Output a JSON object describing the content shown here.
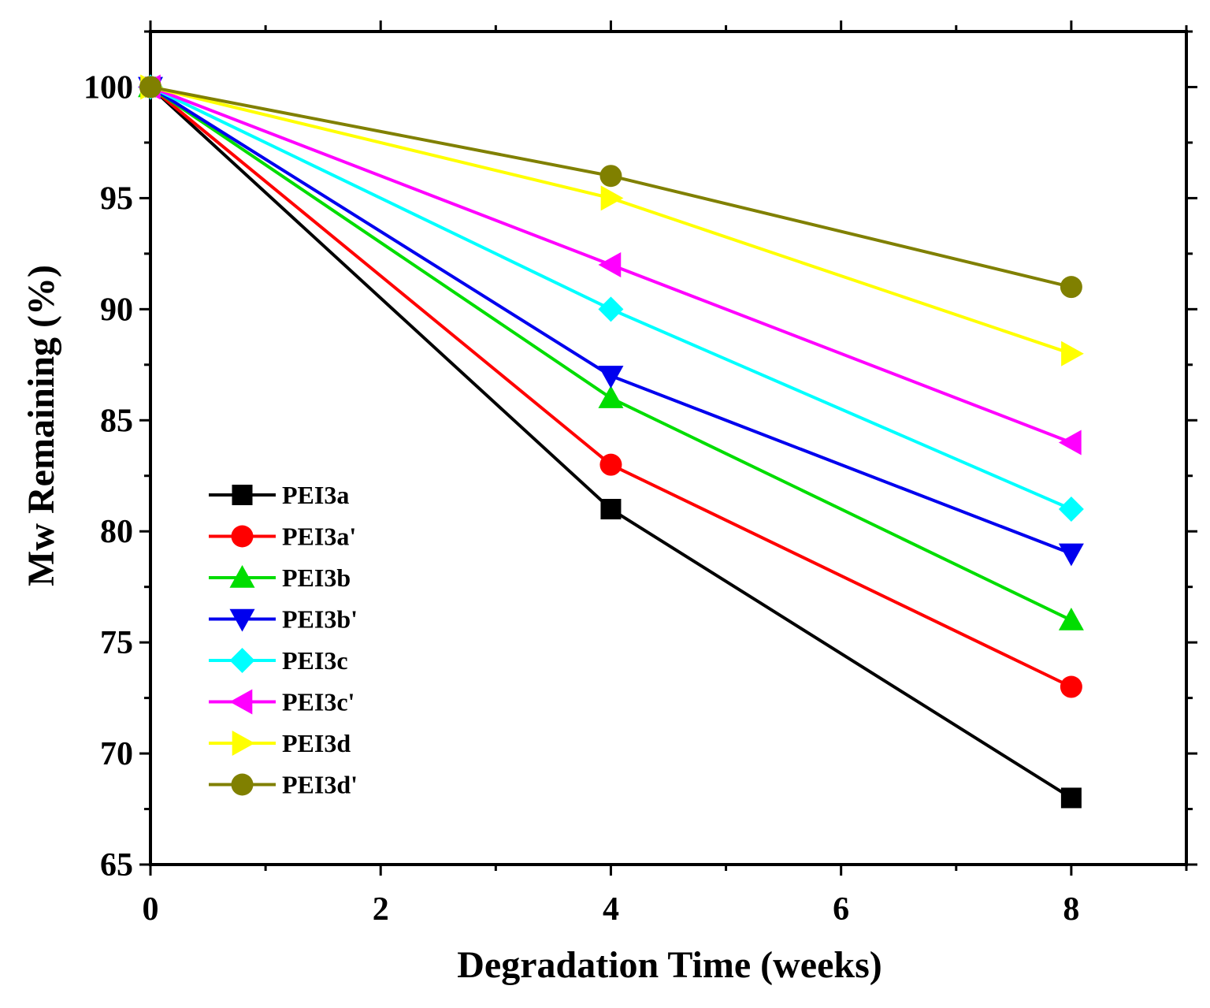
{
  "chart_data": {
    "type": "line",
    "title": "",
    "xlabel": "Degradation Time (weeks)",
    "ylabel": "Mw Remaining (%)",
    "xlim": [
      0,
      9
    ],
    "ylim": [
      65,
      102.5
    ],
    "x_ticks": [
      0,
      2,
      4,
      6,
      8
    ],
    "y_ticks": [
      65,
      70,
      75,
      80,
      85,
      90,
      95,
      100
    ],
    "grid": false,
    "legend_position": "lower-left",
    "x": [
      0,
      4,
      8
    ],
    "series": [
      {
        "name": "PEI3a",
        "marker": "square",
        "color": "#000000",
        "values": [
          100,
          81,
          68
        ]
      },
      {
        "name": "PEI3a'",
        "marker": "circle",
        "color": "#ff0000",
        "values": [
          100,
          83,
          73
        ]
      },
      {
        "name": "PEI3b",
        "marker": "triangle-up",
        "color": "#00dd00",
        "values": [
          100,
          86,
          76
        ]
      },
      {
        "name": "PEI3b'",
        "marker": "triangle-down",
        "color": "#0000ee",
        "values": [
          100,
          87,
          79
        ]
      },
      {
        "name": "PEI3c",
        "marker": "diamond",
        "color": "#00ffff",
        "values": [
          100,
          90,
          81
        ]
      },
      {
        "name": "PEI3c'",
        "marker": "triangle-left",
        "color": "#ff00ff",
        "values": [
          100,
          92,
          84
        ]
      },
      {
        "name": "PEI3d",
        "marker": "triangle-right",
        "color": "#ffff00",
        "values": [
          100,
          95,
          88
        ]
      },
      {
        "name": "PEI3d'",
        "marker": "circle",
        "color": "#808000",
        "values": [
          100,
          96,
          91
        ]
      }
    ]
  }
}
